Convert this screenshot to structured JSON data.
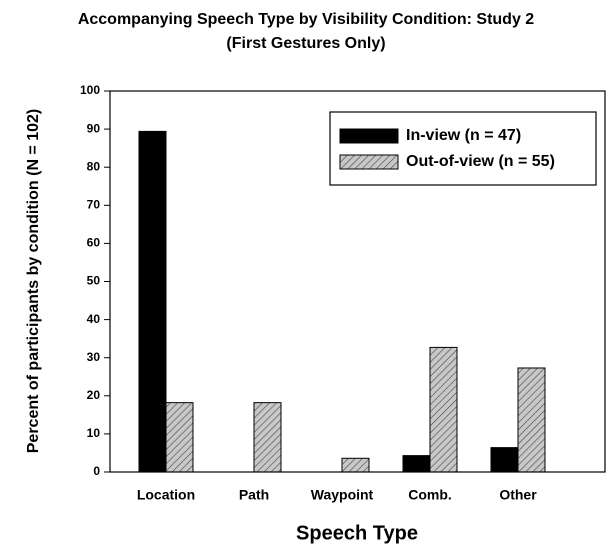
{
  "chart_data": {
    "type": "bar",
    "title": [
      "Accompanying Speech Type by Visibility Condition: Study 2",
      "(First Gestures Only)"
    ],
    "x_label": "Speech Type",
    "y_label": "Percent of participants by condition (N = 102)",
    "categories": [
      "Location",
      "Path",
      "Waypoint",
      "Comb.",
      "Other"
    ],
    "series": [
      {
        "name": "In-view (n = 47)",
        "color": "#000000",
        "values": [
          89.4,
          0,
          0,
          4.3,
          6.4
        ]
      },
      {
        "name": "Out-of-view (n = 55)",
        "color": "#c8c8c8",
        "values": [
          18.2,
          18.2,
          3.6,
          32.7,
          27.3
        ]
      }
    ],
    "ylim": [
      0,
      100
    ],
    "yticks": [
      0,
      10,
      20,
      30,
      40,
      50,
      60,
      70,
      80,
      90,
      100
    ],
    "grid": false,
    "legend": "upper right"
  }
}
